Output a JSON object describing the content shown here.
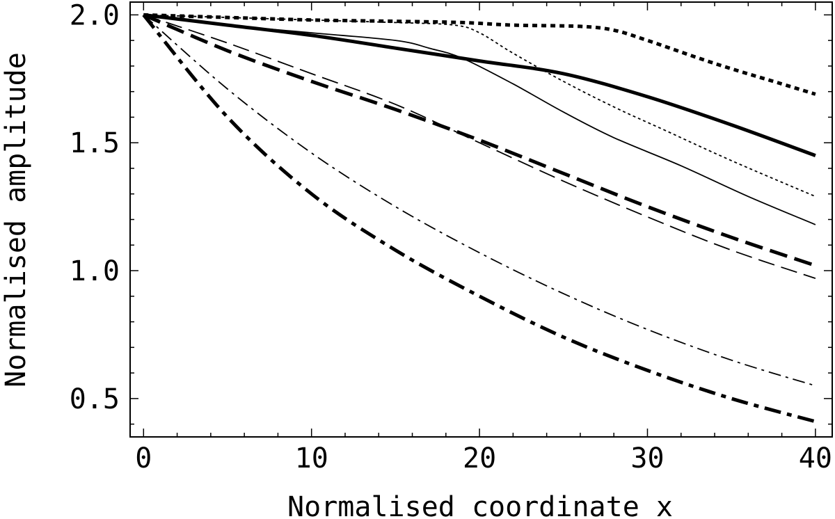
{
  "chart_data": {
    "type": "line",
    "title": "",
    "xlabel": "Normalised coordinate x",
    "ylabel": "Normalised amplitude",
    "xlim": [
      -0.8,
      41
    ],
    "ylim": [
      0.35,
      2.05
    ],
    "xticks": [
      0,
      10,
      20,
      30,
      40
    ],
    "xtick_labels": [
      "0",
      "10",
      "20",
      "30",
      "40"
    ],
    "yticks": [
      0.5,
      1.0,
      1.5,
      2.0
    ],
    "ytick_labels": [
      "0.5",
      "1.0",
      "1.5",
      "2.0"
    ],
    "grid": false,
    "legend": "none",
    "series": [
      {
        "style": "thick-solid",
        "x": [
          0,
          5,
          10,
          15,
          20,
          25,
          30,
          35,
          40
        ],
        "y": [
          2.0,
          1.96,
          1.92,
          1.87,
          1.82,
          1.77,
          1.68,
          1.57,
          1.45
        ]
      },
      {
        "style": "thin-solid",
        "x": [
          0,
          5,
          10,
          15,
          17,
          19,
          22,
          25,
          28,
          32,
          36,
          40
        ],
        "y": [
          2.0,
          1.96,
          1.93,
          1.9,
          1.87,
          1.83,
          1.73,
          1.62,
          1.52,
          1.41,
          1.29,
          1.18
        ]
      },
      {
        "style": "thick-dotted",
        "x": [
          0,
          5,
          10,
          15,
          19,
          22,
          26,
          28,
          30,
          34,
          38,
          40
        ],
        "y": [
          2.0,
          1.99,
          1.98,
          1.975,
          1.97,
          1.96,
          1.955,
          1.94,
          1.9,
          1.81,
          1.73,
          1.69
        ]
      },
      {
        "style": "thin-dotted",
        "x": [
          0,
          5,
          10,
          15,
          18.5,
          20,
          22,
          25,
          28,
          31,
          35,
          40
        ],
        "y": [
          2.0,
          1.99,
          1.98,
          1.97,
          1.96,
          1.93,
          1.85,
          1.74,
          1.64,
          1.55,
          1.43,
          1.29
        ]
      },
      {
        "style": "thick-dashed",
        "x": [
          0,
          5,
          10,
          15,
          20,
          25,
          30,
          35,
          40
        ],
        "y": [
          2.0,
          1.86,
          1.74,
          1.63,
          1.51,
          1.38,
          1.25,
          1.13,
          1.02
        ]
      },
      {
        "style": "thin-dashed",
        "x": [
          0,
          5,
          10,
          15,
          20,
          25,
          30,
          35,
          40
        ],
        "y": [
          2.0,
          1.89,
          1.77,
          1.65,
          1.5,
          1.35,
          1.21,
          1.08,
          0.97
        ]
      },
      {
        "style": "thin-dashdot",
        "x": [
          0,
          5,
          10,
          15,
          20,
          25,
          30,
          35,
          40
        ],
        "y": [
          2.0,
          1.71,
          1.46,
          1.25,
          1.07,
          0.91,
          0.77,
          0.65,
          0.55
        ]
      },
      {
        "style": "thick-dashdot",
        "x": [
          0,
          5,
          10,
          15,
          20,
          25,
          30,
          35,
          40
        ],
        "y": [
          2.0,
          1.6,
          1.3,
          1.08,
          0.9,
          0.74,
          0.61,
          0.5,
          0.41
        ]
      }
    ]
  }
}
